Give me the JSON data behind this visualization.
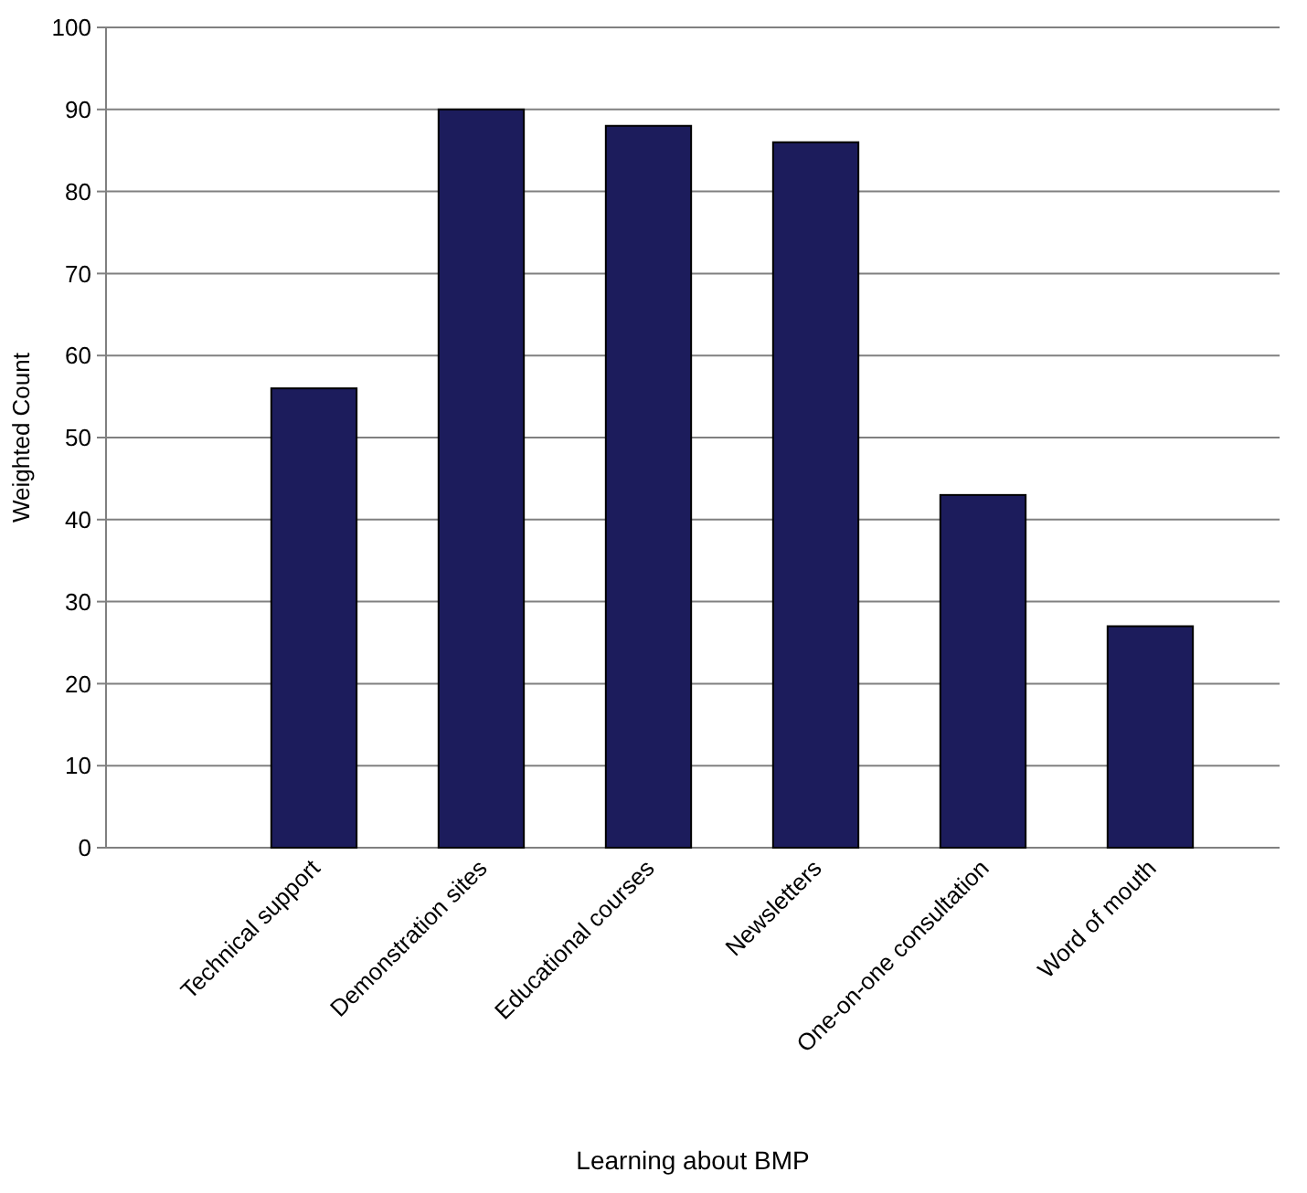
{
  "chart_data": {
    "type": "bar",
    "xlabel": "Learning about BMP",
    "ylabel": "Weighted Count",
    "categories": [
      "Technical support",
      "Demonstration sites",
      "Educational courses",
      "Newsletters",
      "One-on-one consultation",
      "Word of mouth"
    ],
    "values": [
      56,
      90,
      88,
      86,
      43,
      27
    ],
    "color": "#1c1c5c",
    "ylim": [
      0,
      100
    ],
    "yticks": [
      0,
      10,
      20,
      30,
      40,
      50,
      60,
      70,
      80,
      90,
      100
    ],
    "grid": "y"
  }
}
